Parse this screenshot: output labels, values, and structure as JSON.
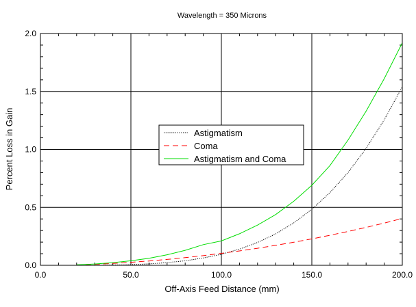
{
  "chart_data": {
    "type": "line",
    "title": "Wavelength = 350 Microns",
    "xlabel": "Off-Axis Feed Distance (mm)",
    "ylabel": "Percent Loss in Gain",
    "xlim": [
      0,
      200
    ],
    "ylim": [
      0,
      2.0
    ],
    "x_ticks": [
      0,
      50,
      100,
      150,
      200
    ],
    "x_tick_labels": [
      "0.0",
      "50.0",
      "100.0",
      "150.0",
      "200.0"
    ],
    "y_ticks": [
      0,
      0.5,
      1.0,
      1.5,
      2.0
    ],
    "y_tick_labels": [
      "0.0",
      "0.5",
      "1.0",
      "1.5",
      "2.0"
    ],
    "grid": true,
    "legend_position": "center",
    "x": [
      0,
      10,
      20,
      30,
      40,
      50,
      60,
      70,
      80,
      90,
      100,
      110,
      120,
      130,
      140,
      150,
      160,
      170,
      180,
      190,
      200
    ],
    "series": [
      {
        "name": "Astigmatism",
        "color": "#000000",
        "dash": "dotted",
        "values": [
          0,
          0,
          0,
          0,
          0.0025,
          0.006,
          0.012,
          0.023,
          0.039,
          0.063,
          0.095,
          0.139,
          0.197,
          0.271,
          0.366,
          0.483,
          0.627,
          0.8,
          1.008,
          1.255,
          1.54
        ]
      },
      {
        "name": "Coma",
        "color": "#ff0000",
        "dash": "dashed",
        "values": [
          0,
          0,
          0.003,
          0.008,
          0.016,
          0.026,
          0.037,
          0.051,
          0.066,
          0.083,
          0.103,
          0.124,
          0.147,
          0.172,
          0.199,
          0.228,
          0.259,
          0.292,
          0.327,
          0.364,
          0.405
        ]
      },
      {
        "name": "Astigmatism and Coma",
        "color": "#00dd00",
        "dash": "solid",
        "values": [
          0,
          0,
          0.004,
          0.011,
          0.023,
          0.039,
          0.061,
          0.091,
          0.129,
          0.178,
          0.21,
          0.272,
          0.347,
          0.438,
          0.552,
          0.69,
          0.86,
          1.08,
          1.33,
          1.61,
          1.92
        ]
      }
    ]
  }
}
